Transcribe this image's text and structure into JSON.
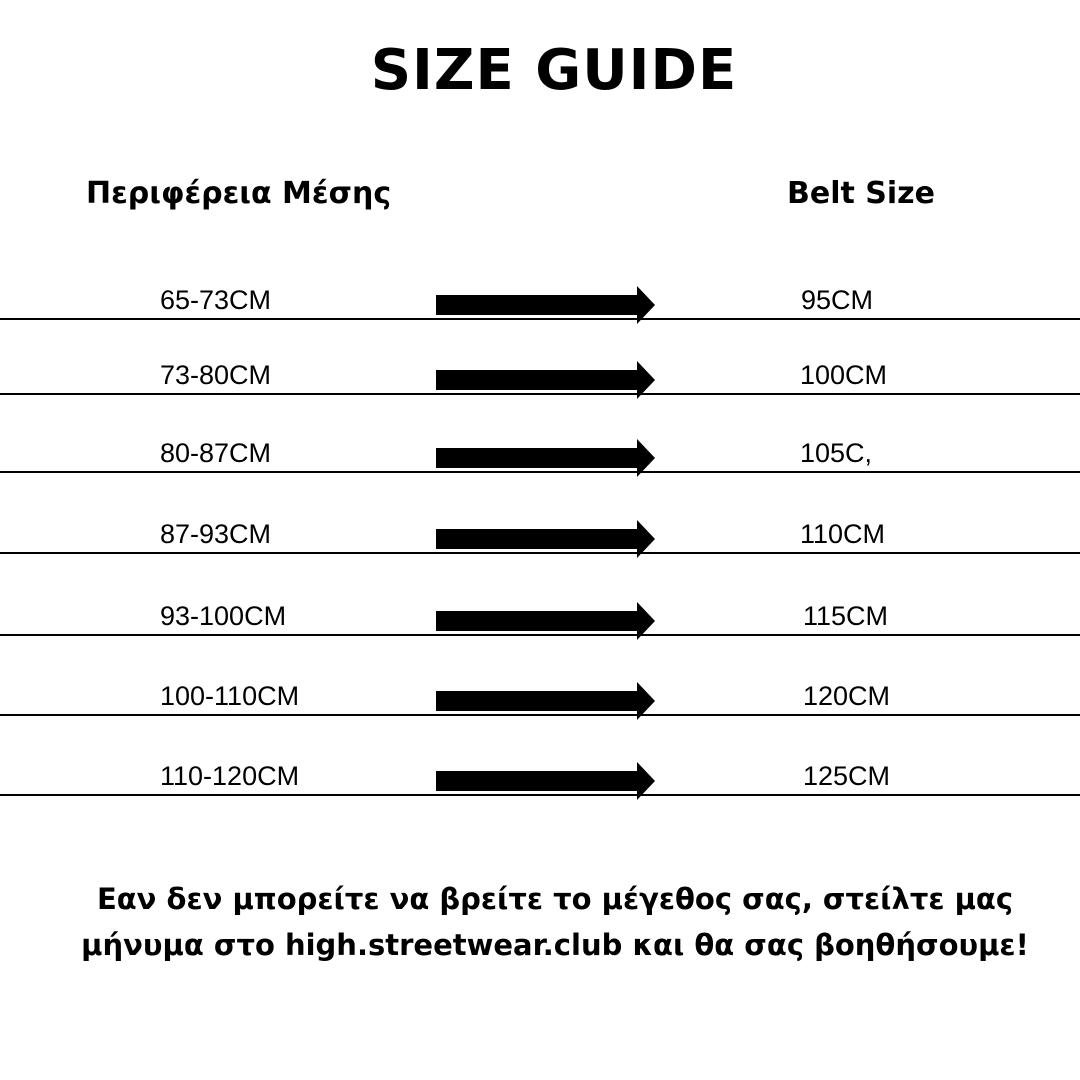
{
  "title": "SIZE GUIDE",
  "headers": {
    "waist": "Περιφέρεια Μέσης",
    "belt": "Belt Size"
  },
  "rows": [
    {
      "waist": "65-73CM",
      "belt": "95CM"
    },
    {
      "waist": "73-80CM",
      "belt": "100CM"
    },
    {
      "waist": "80-87CM",
      "belt": "105C,"
    },
    {
      "waist": "87-93CM",
      "belt": "110CM"
    },
    {
      "waist": "93-100CM",
      "belt": "115CM"
    },
    {
      "waist": "100-110CM",
      "belt": "120CM"
    },
    {
      "waist": "110-120CM",
      "belt": "125CM"
    }
  ],
  "arrow_icon": "right-arrow-icon",
  "footer": "Εαν δεν μπορείτε να βρείτε το μέγεθος σας, στείλτε μας μήνυμα στο high.streetwear.club και θα σας βοηθήσουμε!"
}
